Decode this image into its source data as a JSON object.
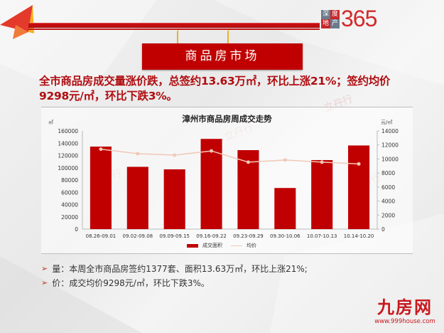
{
  "header": {
    "brand_box": [
      "深",
      "度",
      "地",
      "产"
    ],
    "brand_number": "365",
    "section_title": "商品房市场"
  },
  "headline": {
    "text": "全市商品房成交量涨价跌，总签约13.63万㎡，环比上涨21%；签约均价9298元/㎡，环比下跌3%。"
  },
  "chart": {
    "title": "漳州市商品房周成交走势",
    "left_unit": "㎡",
    "right_unit": "元/㎡",
    "legend": {
      "bar_label": "成交面积",
      "line_label": "均价"
    },
    "colors": {
      "bar": "#c00000",
      "line": "#f0c8b8"
    }
  },
  "chart_data": {
    "type": "bar",
    "title": "漳州市商品房周成交走势",
    "categories": [
      "08.26-09.01",
      "09.02-09.08",
      "09.09-09.15",
      "09.16-09.22",
      "09.23-09.29",
      "09.30-10.06",
      "10.07-10.13",
      "10.14-10.20"
    ],
    "series": [
      {
        "name": "成交面积",
        "type": "bar",
        "axis": "left",
        "values": [
          134500,
          101500,
          97400,
          147000,
          128700,
          67000,
          112500,
          136300
        ]
      },
      {
        "name": "均价",
        "type": "line",
        "axis": "right",
        "values": [
          11400,
          10750,
          10550,
          11150,
          9550,
          9850,
          9550,
          9298
        ]
      }
    ],
    "xlabel": "",
    "ylabel": "㎡",
    "ylabel_right": "元/㎡",
    "ylim": [
      0,
      160000
    ],
    "ylim_right": [
      0,
      14000
    ],
    "yticks_left": [
      0,
      20000,
      40000,
      60000,
      80000,
      100000,
      120000,
      140000,
      160000
    ],
    "yticks_right": [
      0,
      2000,
      4000,
      6000,
      8000,
      10000,
      12000,
      14000
    ],
    "grid": false,
    "legend_position": "bottom"
  },
  "bullets": [
    {
      "label": "量：",
      "text": "本周全市商品房签约1377套、面积13.63万㎡，环比上涨21%;"
    },
    {
      "label": "价：",
      "text": "成交均价9298元/㎡，环比下跌3%。"
    }
  ],
  "footer": {
    "logo_text": "九房网",
    "url": "www.999house.com"
  },
  "watermark": "立丹行"
}
